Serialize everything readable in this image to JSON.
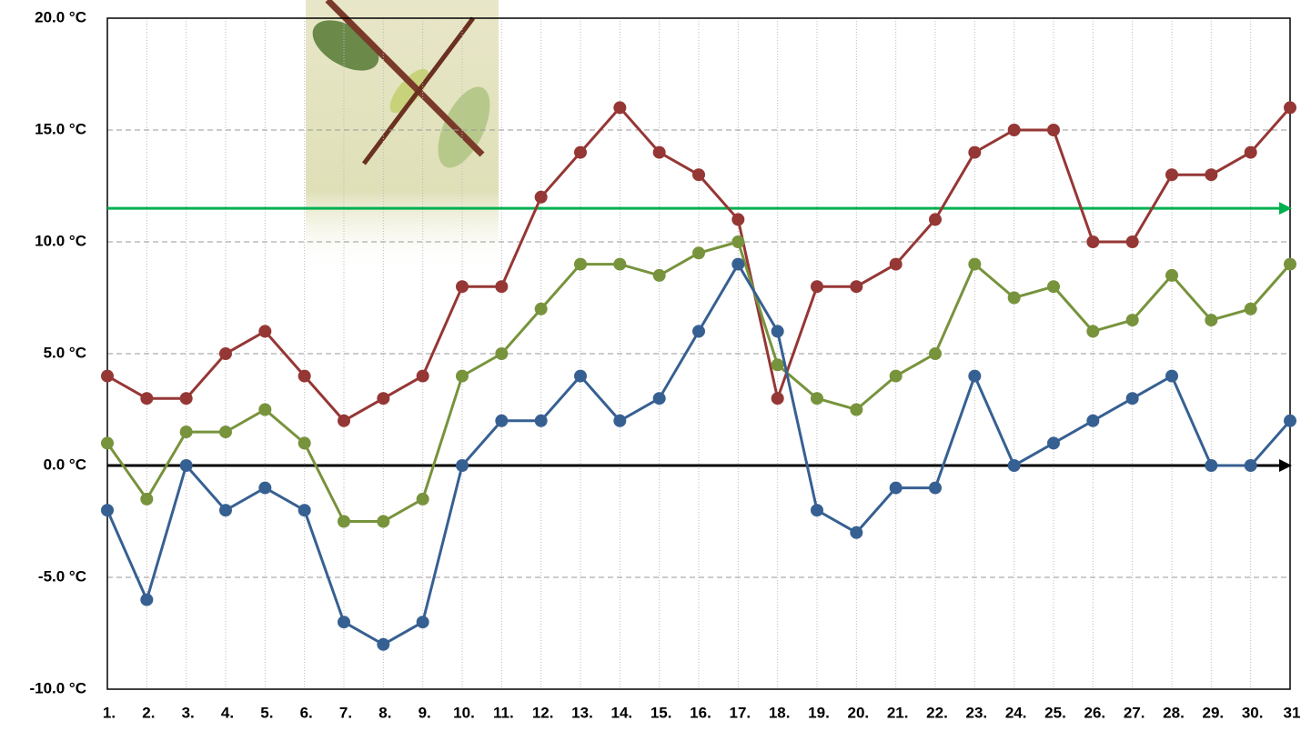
{
  "chart_data": {
    "type": "line",
    "categories": [
      "1.",
      "2.",
      "3.",
      "4.",
      "5.",
      "6.",
      "7.",
      "8.",
      "9.",
      "10.",
      "11.",
      "12.",
      "13.",
      "14.",
      "15.",
      "16.",
      "17.",
      "18.",
      "19.",
      "20.",
      "21.",
      "22.",
      "23.",
      "24.",
      "25.",
      "26.",
      "27.",
      "28.",
      "29.",
      "30.",
      "31"
    ],
    "series": [
      {
        "color": "#953735",
        "values": [
          4,
          3,
          3,
          5,
          6,
          4,
          2,
          3,
          4,
          8,
          8,
          12,
          14,
          16,
          14,
          13,
          11,
          3,
          8,
          8,
          9,
          11,
          14,
          15,
          15,
          10,
          10,
          13,
          13,
          14,
          16
        ]
      },
      {
        "color": "#77933c",
        "values": [
          1,
          -1.5,
          1.5,
          1.5,
          2.5,
          1,
          -2.5,
          -2.5,
          -1.5,
          4,
          5,
          7,
          9,
          9,
          8.5,
          9.5,
          10,
          4.5,
          3,
          2.5,
          4,
          5,
          9,
          7.5,
          8,
          6,
          6.5,
          8.5,
          6.5,
          7,
          9
        ]
      },
      {
        "color": "#376092",
        "values": [
          -2,
          -6,
          0,
          -2,
          -1,
          -2,
          -7,
          -8,
          -7,
          0,
          2,
          2,
          4,
          2,
          3,
          6,
          9,
          6,
          -2,
          -3,
          -1,
          -1,
          4,
          0,
          1,
          2,
          3,
          4,
          0,
          0,
          2
        ]
      }
    ],
    "reference_line": {
      "value": 11.5,
      "color": "#00b050"
    },
    "ylim": [
      -10,
      20
    ],
    "yticks": [
      {
        "value": -10,
        "label": "-10.0 °C"
      },
      {
        "value": -5,
        "label": "-5.0 °C"
      },
      {
        "value": 0,
        "label": "0.0 °C"
      },
      {
        "value": 5,
        "label": "5.0 °C"
      },
      {
        "value": 10,
        "label": "10.0 °C"
      },
      {
        "value": 15,
        "label": "15.0 °C"
      },
      {
        "value": 20,
        "label": "20.0 °C"
      }
    ],
    "grid": true
  }
}
